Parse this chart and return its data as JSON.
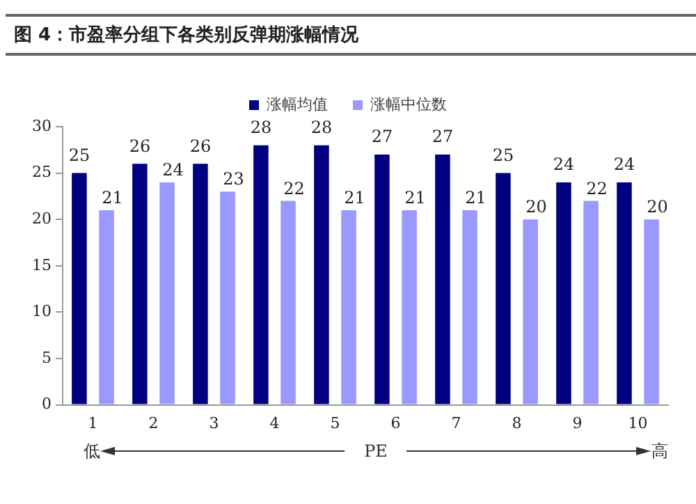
{
  "chart_data": {
    "type": "bar",
    "title": "图 4：市盈率分组下各类别反弹期涨幅情况",
    "xlabel": "PE",
    "annotations": [
      "低",
      "高"
    ],
    "categories": [
      "1",
      "2",
      "3",
      "4",
      "5",
      "6",
      "7",
      "8",
      "9",
      "10"
    ],
    "series": [
      {
        "name": "涨幅均值",
        "color": "#000080",
        "values": [
          25,
          26,
          26,
          28,
          28,
          27,
          27,
          25,
          24,
          24
        ]
      },
      {
        "name": "涨幅中位数",
        "color": "#9999ff",
        "values": [
          21,
          24,
          23,
          22,
          21,
          21,
          21,
          20,
          22,
          20
        ]
      }
    ],
    "ylim": [
      0,
      30
    ],
    "yticks": [
      0,
      5,
      10,
      15,
      20,
      25,
      30
    ],
    "grid": false,
    "legend": "top",
    "data_labels": true
  }
}
